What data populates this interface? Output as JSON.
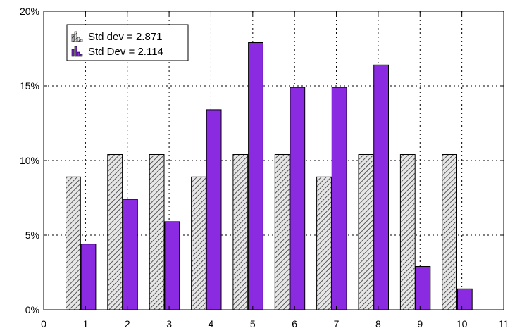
{
  "chart_data": {
    "type": "bar",
    "title": "",
    "xlabel": "",
    "ylabel": "",
    "xlim": [
      0,
      11
    ],
    "ylim": [
      0,
      20
    ],
    "x_ticks": [
      "0",
      "1",
      "2",
      "3",
      "4",
      "5",
      "6",
      "7",
      "8",
      "9",
      "10",
      "11"
    ],
    "y_ticks": [
      "0%",
      "5%",
      "10%",
      "15%",
      "20%"
    ],
    "grid": true,
    "legend_placement": "top-left",
    "x": [
      1,
      2,
      3,
      4,
      5,
      6,
      7,
      8,
      9,
      10
    ],
    "series": [
      {
        "name": "Std dev = 2.871",
        "style": "hatched",
        "color": "#b0b0b0",
        "values": [
          8.9,
          10.4,
          10.4,
          8.9,
          10.4,
          10.4,
          8.9,
          10.4,
          10.4,
          10.4
        ]
      },
      {
        "name": "Std Dev = 2.114",
        "style": "solid",
        "color": "#8a2be2",
        "values": [
          4.4,
          7.4,
          5.9,
          13.4,
          17.9,
          14.9,
          14.9,
          16.4,
          2.9,
          1.4
        ]
      }
    ]
  }
}
